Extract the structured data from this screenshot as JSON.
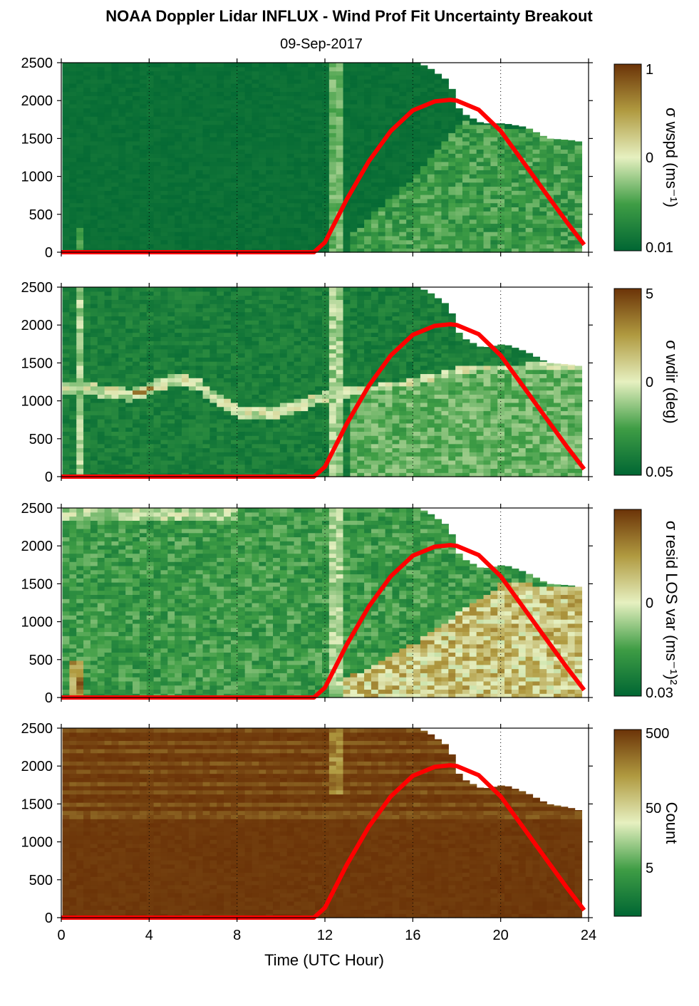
{
  "title": "NOAA Doppler Lidar INFLUX - Wind Prof Fit Uncertainty Breakout",
  "subtitle": "09-Sep-2017",
  "xlabel": "Time (UTC Hour)",
  "colors": {
    "dark_green": "#006633",
    "mid_green": "#3f9d45",
    "light": "#e6f0c0",
    "tan": "#b09a40",
    "brown": "#6b3308",
    "red_line": "#ff0000"
  },
  "chart_data": [
    {
      "type": "heatmap",
      "panel": "wspd",
      "x": [
        0,
        24
      ],
      "xticks": [
        0,
        4,
        8,
        12,
        16,
        20,
        24
      ],
      "ylim": [
        0,
        2500
      ],
      "yticks": [
        0,
        500,
        1000,
        1500,
        2000,
        2500
      ],
      "cbar_label": "σ wspd (ms⁻¹)",
      "cbar_ticks": [
        "1",
        "0",
        "0.01"
      ],
      "data_top": [
        [
          0,
          2500
        ],
        [
          11.9,
          2500
        ],
        [
          16,
          2500
        ],
        [
          16.5,
          2450
        ],
        [
          17,
          2350
        ],
        [
          17.5,
          2250
        ],
        [
          18,
          1850
        ],
        [
          19,
          1700
        ],
        [
          20,
          1700
        ],
        [
          21,
          1650
        ],
        [
          22,
          1500
        ],
        [
          23,
          1480
        ],
        [
          23.6,
          1450
        ]
      ],
      "sun_curve": [
        [
          0,
          0
        ],
        [
          11.5,
          0
        ],
        [
          12,
          130
        ],
        [
          13,
          700
        ],
        [
          14,
          1200
        ],
        [
          15,
          1600
        ],
        [
          16,
          1870
        ],
        [
          17,
          1990
        ],
        [
          17.7,
          2010
        ],
        [
          18,
          2000
        ],
        [
          19,
          1880
        ],
        [
          20,
          1600
        ],
        [
          21,
          1200
        ],
        [
          22,
          800
        ],
        [
          23,
          400
        ],
        [
          23.8,
          100
        ]
      ]
    },
    {
      "type": "heatmap",
      "panel": "wdir",
      "x": [
        0,
        24
      ],
      "xticks": [
        0,
        4,
        8,
        12,
        16,
        20,
        24
      ],
      "ylim": [
        0,
        2500
      ],
      "yticks": [
        0,
        500,
        1000,
        1500,
        2000,
        2500
      ],
      "cbar_label": "σ wdir (deg)",
      "cbar_ticks": [
        "5",
        "0",
        "0.05"
      ],
      "data_top": [
        [
          0,
          2500
        ],
        [
          11.9,
          2500
        ],
        [
          16,
          2500
        ],
        [
          16.5,
          2450
        ],
        [
          17,
          2350
        ],
        [
          17.5,
          2250
        ],
        [
          18,
          1850
        ],
        [
          19,
          1700
        ],
        [
          20,
          1750
        ],
        [
          21,
          1650
        ],
        [
          22,
          1500
        ],
        [
          23,
          1480
        ],
        [
          23.6,
          1450
        ]
      ],
      "sun_curve": [
        [
          0,
          0
        ],
        [
          11.5,
          0
        ],
        [
          12,
          130
        ],
        [
          13,
          700
        ],
        [
          14,
          1200
        ],
        [
          15,
          1600
        ],
        [
          16,
          1870
        ],
        [
          17,
          1990
        ],
        [
          17.7,
          2010
        ],
        [
          18,
          2000
        ],
        [
          19,
          1880
        ],
        [
          20,
          1600
        ],
        [
          21,
          1200
        ],
        [
          22,
          800
        ],
        [
          23,
          400
        ],
        [
          23.8,
          100
        ]
      ]
    },
    {
      "type": "heatmap",
      "panel": "resid",
      "x": [
        0,
        24
      ],
      "xticks": [
        0,
        4,
        8,
        12,
        16,
        20,
        24
      ],
      "ylim": [
        0,
        2500
      ],
      "yticks": [
        0,
        500,
        1000,
        1500,
        2000,
        2500
      ],
      "cbar_label": "σ resid LOS var (ms⁻¹)²",
      "cbar_ticks": [
        "0",
        "0.03"
      ],
      "data_top": [
        [
          0,
          2500
        ],
        [
          11.9,
          2500
        ],
        [
          16,
          2500
        ],
        [
          16.5,
          2450
        ],
        [
          17,
          2350
        ],
        [
          17.5,
          2250
        ],
        [
          18,
          1850
        ],
        [
          19,
          1700
        ],
        [
          20,
          1750
        ],
        [
          21,
          1650
        ],
        [
          22,
          1500
        ],
        [
          23,
          1480
        ],
        [
          23.6,
          1450
        ]
      ],
      "sun_curve": [
        [
          0,
          0
        ],
        [
          11.5,
          0
        ],
        [
          12,
          130
        ],
        [
          13,
          700
        ],
        [
          14,
          1200
        ],
        [
          15,
          1600
        ],
        [
          16,
          1870
        ],
        [
          17,
          1990
        ],
        [
          17.7,
          2010
        ],
        [
          18,
          2000
        ],
        [
          19,
          1880
        ],
        [
          20,
          1600
        ],
        [
          21,
          1200
        ],
        [
          22,
          800
        ],
        [
          23,
          400
        ],
        [
          23.8,
          100
        ]
      ]
    },
    {
      "type": "heatmap",
      "panel": "count",
      "x": [
        0,
        24
      ],
      "xticks": [
        0,
        4,
        8,
        12,
        16,
        20,
        24
      ],
      "ylim": [
        0,
        2500
      ],
      "yticks": [
        0,
        500,
        1000,
        1500,
        2000,
        2500
      ],
      "cbar_label": "Count",
      "cbar_ticks": [
        "500",
        "50",
        "5"
      ],
      "data_top": [
        [
          0,
          2500
        ],
        [
          11.9,
          2500
        ],
        [
          16,
          2500
        ],
        [
          16.5,
          2450
        ],
        [
          17,
          2350
        ],
        [
          17.5,
          2250
        ],
        [
          18,
          1850
        ],
        [
          19,
          1700
        ],
        [
          20,
          1750
        ],
        [
          21,
          1650
        ],
        [
          22,
          1500
        ],
        [
          23,
          1450
        ],
        [
          23.6,
          1400
        ]
      ],
      "sun_curve": [
        [
          0,
          0
        ],
        [
          11.5,
          0
        ],
        [
          12,
          130
        ],
        [
          13,
          700
        ],
        [
          14,
          1200
        ],
        [
          15,
          1600
        ],
        [
          16,
          1870
        ],
        [
          17,
          1990
        ],
        [
          17.7,
          2010
        ],
        [
          18,
          2000
        ],
        [
          19,
          1880
        ],
        [
          20,
          1600
        ],
        [
          21,
          1200
        ],
        [
          22,
          800
        ],
        [
          23,
          400
        ],
        [
          23.8,
          100
        ]
      ]
    }
  ]
}
